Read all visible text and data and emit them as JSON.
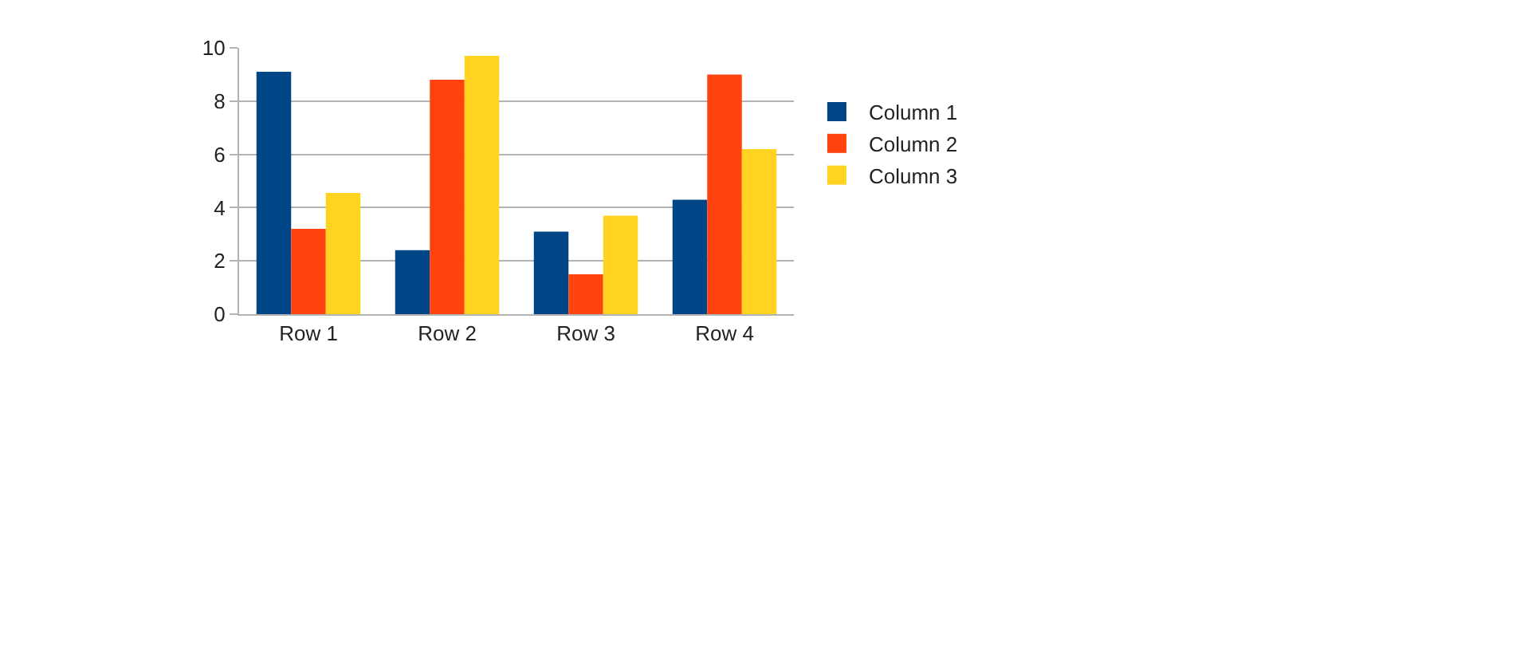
{
  "chart_data": {
    "type": "bar",
    "categories": [
      "Row 1",
      "Row 2",
      "Row 3",
      "Row 4"
    ],
    "series": [
      {
        "name": "Column 1",
        "color": "#004586",
        "values": [
          9.1,
          2.4,
          3.1,
          4.3
        ]
      },
      {
        "name": "Column 2",
        "color": "#ff420e",
        "values": [
          3.2,
          8.8,
          1.5,
          9.0
        ]
      },
      {
        "name": "Column 3",
        "color": "#ffd320",
        "values": [
          4.55,
          9.7,
          3.7,
          6.2
        ]
      }
    ],
    "ylim": [
      0,
      10
    ],
    "yticks": [
      0,
      2,
      4,
      6,
      8,
      10
    ],
    "grid": "y",
    "legend": "right"
  }
}
